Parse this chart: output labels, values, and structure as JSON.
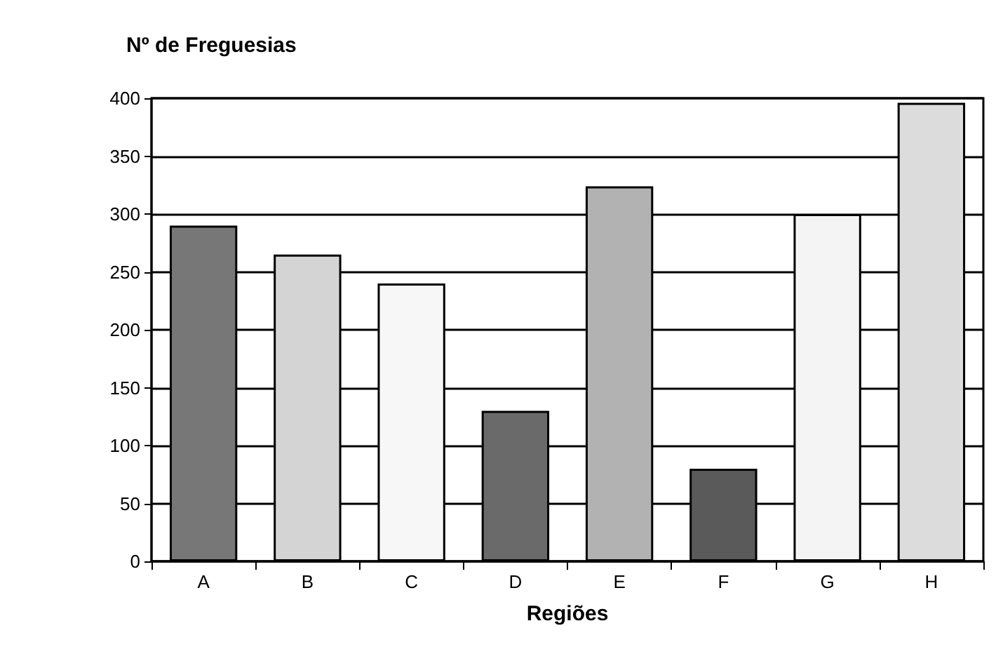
{
  "chart_data": {
    "type": "bar",
    "ylabel": "Nº de Freguesias",
    "xlabel": "Regiões",
    "categories": [
      "A",
      "B",
      "C",
      "D",
      "E",
      "F",
      "G",
      "H"
    ],
    "values": [
      290,
      265,
      240,
      130,
      324,
      80,
      300,
      396
    ],
    "colors": [
      "#777777",
      "#d4d4d4",
      "#f7f7f7",
      "#6a6a6a",
      "#b2b2b2",
      "#5a5a5a",
      "#f4f4f4",
      "#dcdcdc"
    ],
    "ylim": [
      0,
      400
    ],
    "yticks": [
      0,
      50,
      100,
      150,
      200,
      250,
      300,
      350,
      400
    ],
    "grid": "y"
  }
}
